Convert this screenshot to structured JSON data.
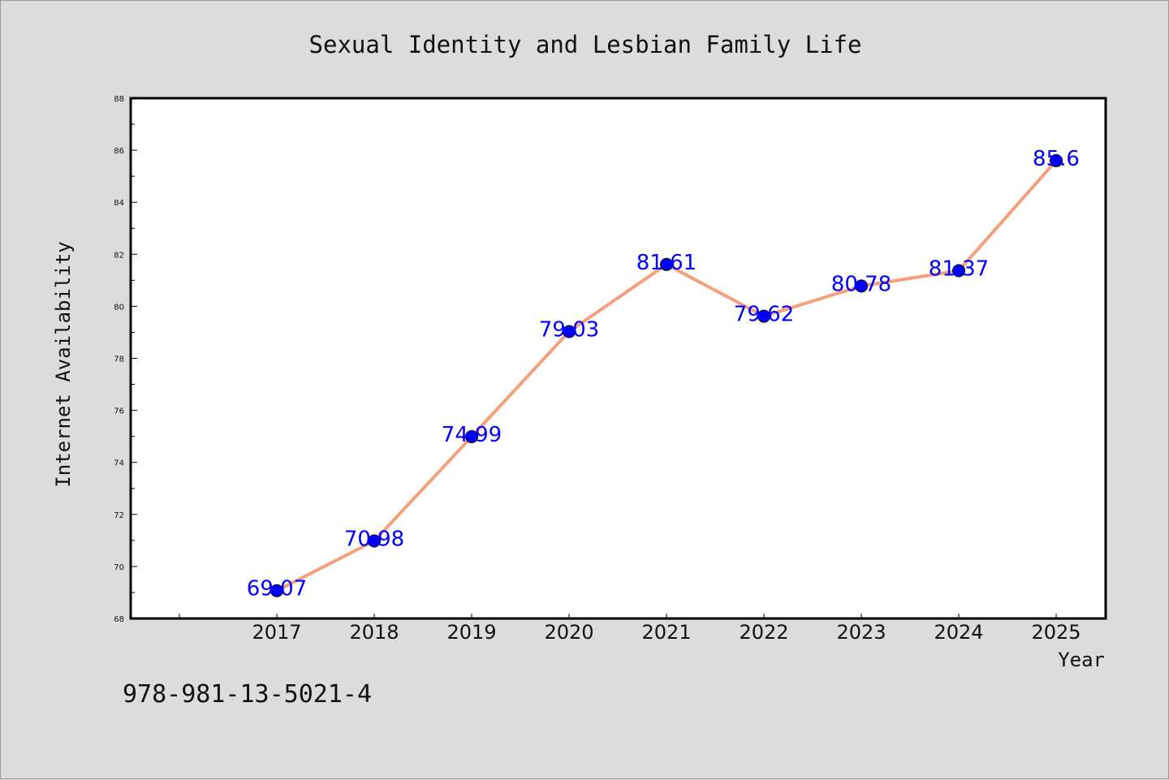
{
  "chart_data": {
    "type": "line",
    "title": "Sexual Identity and Lesbian Family Life",
    "xlabel": "Year",
    "ylabel": "Internet Availability",
    "x": [
      "2017",
      "2018",
      "2019",
      "2020",
      "2021",
      "2022",
      "2023",
      "2024",
      "2025"
    ],
    "values": [
      69.07,
      70.98,
      74.99,
      79.03,
      81.61,
      79.62,
      80.78,
      81.37,
      85.6
    ],
    "data_labels": [
      "69.07",
      "70.98",
      "74.99",
      "79.03",
      "81.61",
      "79.62",
      "80.78",
      "81.37",
      "85.6"
    ],
    "ylim": [
      68,
      88
    ],
    "yticks": [
      "68",
      "70",
      "72",
      "74",
      "76",
      "78",
      "80",
      "82",
      "84",
      "86",
      "88"
    ],
    "grid": false,
    "line_color": "#f4a07a",
    "marker_color": "#0000ff",
    "label_color": "#0000ff"
  },
  "footer": {
    "isbn": "978-981-13-5021-4"
  }
}
